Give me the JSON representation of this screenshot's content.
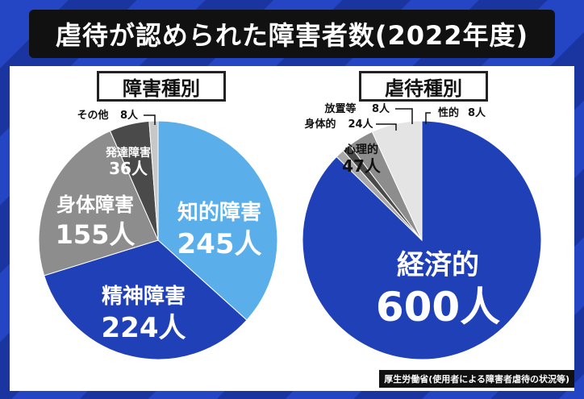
{
  "title": "虐待が認められた障害者数(2022年度)",
  "source": "厚生労働省(使用者による障害者虐待の状況等)",
  "unit": "人",
  "colors": {
    "light_blue": "#5aaeea",
    "blue": "#2040b8",
    "gray": "#8d8d8d",
    "dark_gray": "#4a4a4a",
    "light_gray": "#c7c7c7",
    "pale_gray": "#e4e4e4",
    "mid_gray": "#a8a8a8"
  },
  "chart_data": [
    {
      "type": "pie",
      "title": "障害種別",
      "categories": [
        "知的障害",
        "精神障害",
        "身体障害",
        "発達障害",
        "その他"
      ],
      "values": [
        245,
        224,
        155,
        36,
        8
      ],
      "value_labels": [
        "245人",
        "224人",
        "155人",
        "36人",
        "8人"
      ],
      "start": "12 o'clock",
      "direction": "clockwise"
    },
    {
      "type": "pie",
      "title": "虐待種別",
      "categories": [
        "経済的",
        "性的",
        "放置等",
        "身体的",
        "心理的"
      ],
      "values": [
        600,
        8,
        8,
        24,
        47
      ],
      "value_labels": [
        "600人",
        "8人",
        "8人",
        "24人",
        "47人"
      ],
      "start": "12 o'clock",
      "direction": "clockwise"
    }
  ]
}
